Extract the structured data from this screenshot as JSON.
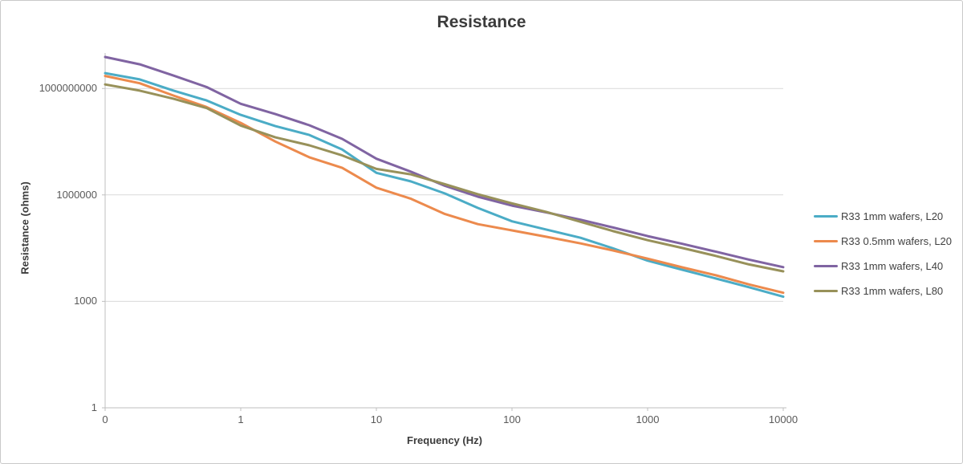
{
  "chart_data": {
    "type": "line",
    "title": "Resistance",
    "xlabel": "Frequency (Hz)",
    "ylabel": "Resistance (ohms)",
    "x_scale": "log",
    "y_scale": "log",
    "xlim": [
      0.1,
      10000
    ],
    "ylim": [
      1,
      10000000000
    ],
    "x_tick_values": [
      0.1,
      1,
      10,
      100,
      1000,
      10000
    ],
    "x_tick_labels": [
      "0",
      "1",
      "10",
      "100",
      "1000",
      "10000"
    ],
    "y_tick_values": [
      1,
      1000,
      1000000,
      1000000000
    ],
    "y_tick_labels": [
      "1",
      "1000",
      "1000000",
      "1000000000"
    ],
    "grid": "horizontal-only",
    "legend_position": "right",
    "colors": {
      "grid": "#D9D9D9",
      "axis": "#BFBFBF",
      "title_text": "#3B3B3B",
      "axis_title_text": "#3B3B3B",
      "tick_text": "#595959",
      "legend_text": "#404040",
      "background": "#FFFFFF"
    },
    "x": [
      0.1,
      0.18,
      0.32,
      0.56,
      1,
      1.8,
      3.2,
      5.6,
      10,
      18,
      32,
      56,
      100,
      180,
      320,
      560,
      1000,
      1800,
      3200,
      5600,
      10000
    ],
    "series": [
      {
        "name": "R33 1mm wafers, L20",
        "color": "#4BACC6",
        "values": [
          2700000000.0,
          1800000000.0,
          870000000.0,
          460000000.0,
          180000000.0,
          87000000.0,
          49000000.0,
          19000000.0,
          4200000.0,
          2400000.0,
          1100000.0,
          430000,
          180000,
          105000,
          62000,
          31000,
          14000,
          7800,
          4400,
          2500,
          1350
        ]
      },
      {
        "name": "R33 0.5mm wafers, L20",
        "color": "#EC8A4D",
        "values": [
          2250000000.0,
          1400000000.0,
          630000000.0,
          300000000.0,
          107000000.0,
          32000000.0,
          11500000.0,
          5800000.0,
          1600000.0,
          780000,
          290000,
          150000,
          100000,
          66000,
          43000,
          27000,
          16000,
          9100,
          5400,
          3000,
          1750
        ]
      },
      {
        "name": "R33 1mm wafers, L40",
        "color": "#8064A2",
        "values": [
          7700000000.0,
          4800000000.0,
          2300000000.0,
          1100000000.0,
          370000000.0,
          190000000.0,
          92000000.0,
          38000000.0,
          10500000.0,
          4500000.0,
          1800000.0,
          890000,
          500000,
          320000,
          200000,
          120000,
          69000,
          42000,
          25000,
          15000,
          9200
        ]
      },
      {
        "name": "R33 1mm wafers, L80",
        "color": "#98915A",
        "values": [
          1300000000.0,
          870000000.0,
          510000000.0,
          280000000.0,
          90000000.0,
          42000000.0,
          25000000.0,
          13000000.0,
          5400000.0,
          3800000.0,
          2000000.0,
          1050000.0,
          580000,
          330000,
          175000,
          95000,
          53000,
          32000,
          19000,
          11000,
          7000
        ]
      }
    ]
  }
}
